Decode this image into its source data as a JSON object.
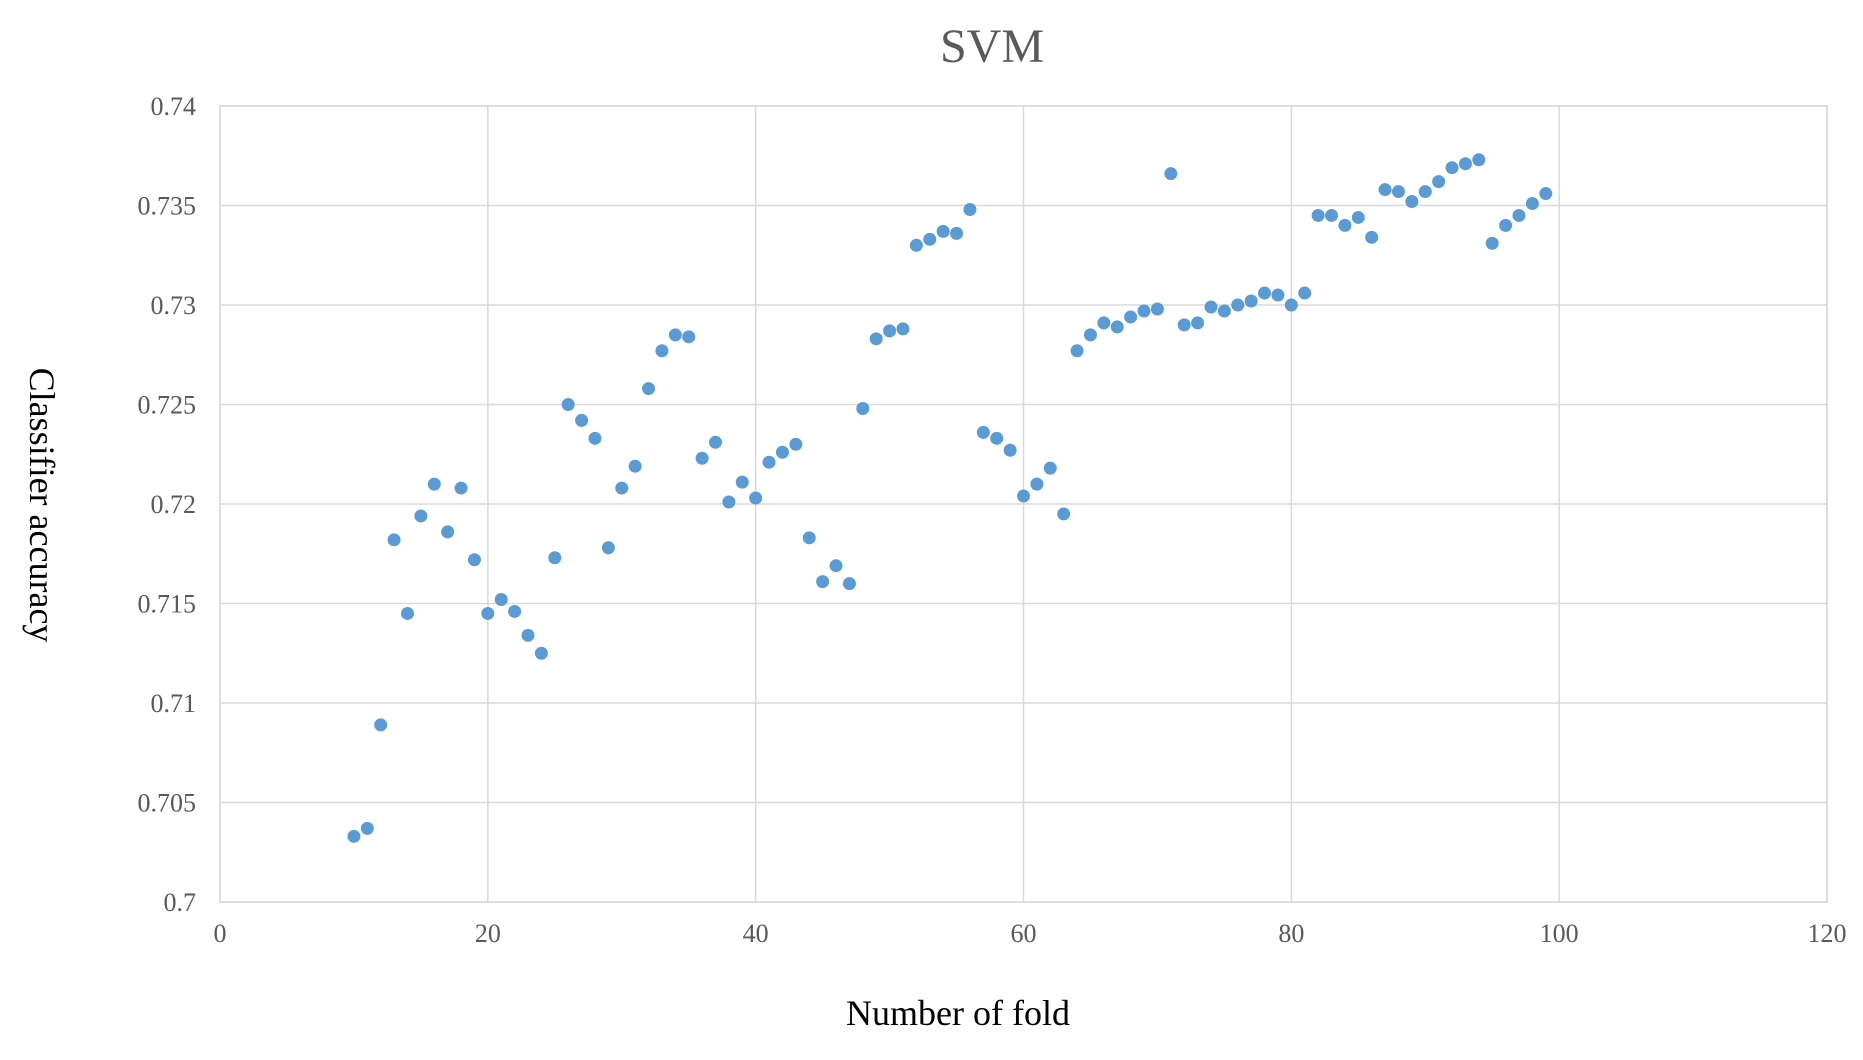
{
  "chart_data": {
    "type": "scatter",
    "title": "SVM",
    "xlabel": "Number of fold",
    "ylabel": "Classifier accuracy",
    "xlim": [
      0,
      120
    ],
    "ylim": [
      0.7,
      0.74
    ],
    "xticks": [
      "0",
      "20",
      "40",
      "60",
      "80",
      "100",
      "120"
    ],
    "yticks": [
      "0.7",
      "0.705",
      "0.71",
      "0.715",
      "0.72",
      "0.725",
      "0.73",
      "0.735",
      "0.74"
    ],
    "grid": true,
    "marker_color": "#5b9bd5",
    "series": [
      {
        "x": [
          10,
          11,
          12,
          13,
          14,
          15,
          16,
          17,
          18,
          19,
          20,
          21,
          22,
          23,
          24,
          25,
          26,
          27,
          28,
          29,
          30,
          31,
          32,
          33,
          34,
          35,
          36,
          37,
          38,
          39,
          40,
          41,
          42,
          43,
          44,
          45,
          46,
          47,
          48,
          49,
          50,
          51,
          52,
          53,
          54,
          55,
          56,
          57,
          58,
          59,
          60,
          61,
          62,
          63,
          64,
          65,
          66,
          67,
          68,
          69,
          70,
          71,
          72,
          73,
          74,
          75,
          76,
          77,
          78,
          79,
          80,
          81,
          82,
          83,
          84,
          85,
          86,
          87,
          88,
          89,
          90,
          91,
          92,
          93,
          94,
          95,
          96,
          97,
          98,
          99
        ],
        "y": [
          0.7033,
          0.7037,
          0.7089,
          0.7182,
          0.7145,
          0.7194,
          0.721,
          0.7186,
          0.7208,
          0.7172,
          0.7145,
          0.7152,
          0.7146,
          0.7134,
          0.7125,
          0.7173,
          0.725,
          0.7242,
          0.7233,
          0.7178,
          0.7208,
          0.7219,
          0.7258,
          0.7277,
          0.7285,
          0.7284,
          0.7223,
          0.7231,
          0.7201,
          0.7211,
          0.7203,
          0.7221,
          0.7226,
          0.723,
          0.7183,
          0.7161,
          0.7169,
          0.716,
          0.7248,
          0.7283,
          0.7287,
          0.7288,
          0.733,
          0.7333,
          0.7337,
          0.7336,
          0.7348,
          0.7236,
          0.7233,
          0.7227,
          0.7204,
          0.721,
          0.7218,
          0.7195,
          0.7277,
          0.7285,
          0.7291,
          0.7289,
          0.7294,
          0.7297,
          0.7298,
          0.7366,
          0.729,
          0.7291,
          0.7299,
          0.7297,
          0.73,
          0.7302,
          0.7306,
          0.7305,
          0.73,
          0.7306,
          0.7345,
          0.7345,
          0.734,
          0.7344,
          0.7334,
          0.7358,
          0.7357,
          0.7352,
          0.7357,
          0.7362,
          0.7369,
          0.7371,
          0.7373,
          0.7331,
          0.734,
          0.7345,
          0.7351,
          0.7356
        ]
      }
    ]
  }
}
